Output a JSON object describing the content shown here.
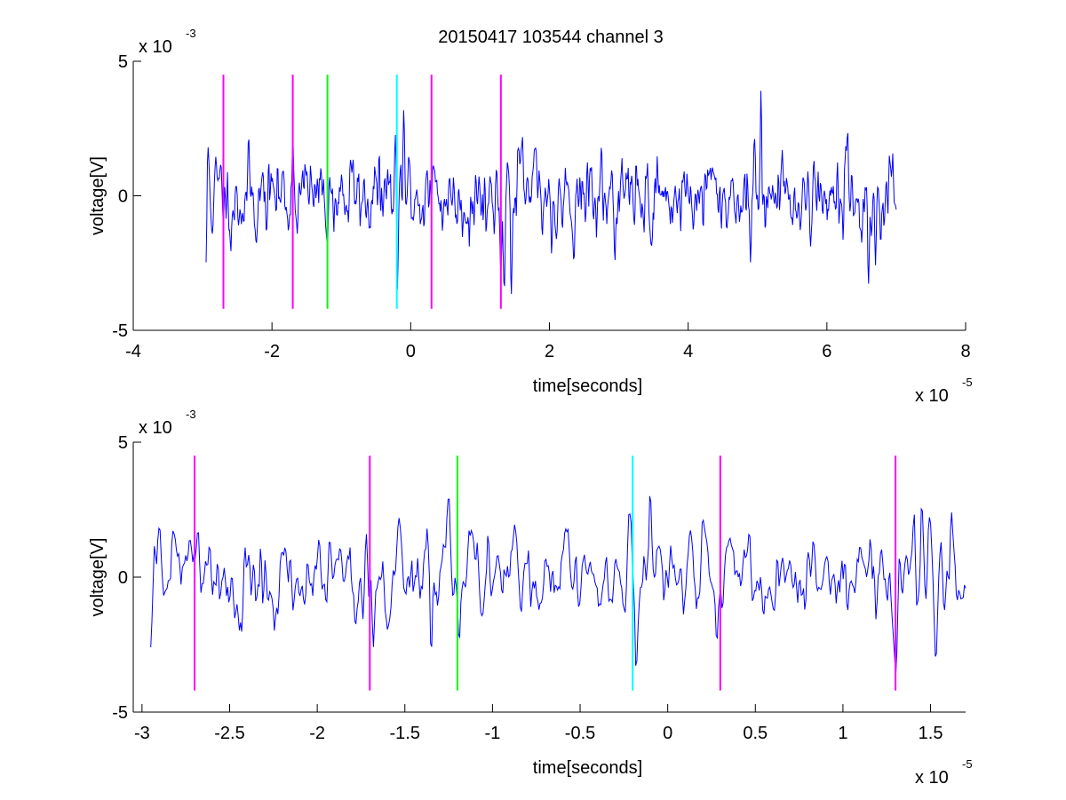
{
  "title": "20150417 103544 channel 3",
  "chart_data": [
    {
      "type": "line",
      "xlabel": "time[seconds]",
      "ylabel": "voltage[V]",
      "x_exponent_label": "x 10",
      "x_exponent": "-5",
      "y_exponent_label": "x 10",
      "y_exponent": "-3",
      "xlim": [
        -4,
        8
      ],
      "ylim": [
        -5,
        5
      ],
      "xticks": [
        -4,
        -2,
        0,
        2,
        4,
        6,
        8
      ],
      "xtick_labels": [
        "-4",
        "-2",
        "0",
        "2",
        "4",
        "6",
        "8"
      ],
      "yticks": [
        -5,
        0,
        5
      ],
      "ytick_labels": [
        "-5",
        "0",
        "5"
      ],
      "grid": false,
      "series": [
        {
          "color": "#0000ff",
          "x_range": [
            -2.95,
            7.0
          ],
          "n_points": 1000,
          "seed": 11,
          "peaks": [
            [
              -2.95,
              -2.6
            ],
            [
              -2.92,
              1.8
            ],
            [
              -1.7,
              2.1
            ],
            [
              -0.22,
              2.4
            ],
            [
              -0.19,
              -3.5
            ],
            [
              -0.1,
              3.2
            ],
            [
              1.3,
              -2.8
            ],
            [
              1.35,
              -3.4
            ],
            [
              1.45,
              -3.7
            ],
            [
              5.05,
              4.0
            ],
            [
              4.9,
              -2.5
            ],
            [
              6.6,
              -3.3
            ],
            [
              6.7,
              -2.6
            ]
          ]
        }
      ],
      "markers": [
        {
          "x": -2.7,
          "color": "#ff00ff",
          "y_range": [
            -4.2,
            4.5
          ]
        },
        {
          "x": -1.7,
          "color": "#ff00ff",
          "y_range": [
            -4.2,
            4.5
          ]
        },
        {
          "x": -1.2,
          "color": "#00ff00",
          "y_range": [
            -4.2,
            4.5
          ]
        },
        {
          "x": -0.2,
          "color": "#00ffff",
          "y_range": [
            -4.2,
            4.5
          ]
        },
        {
          "x": 0.3,
          "color": "#ff00ff",
          "y_range": [
            -4.2,
            4.5
          ]
        },
        {
          "x": 1.3,
          "color": "#ff00ff",
          "y_range": [
            -4.2,
            4.5
          ]
        }
      ]
    },
    {
      "type": "line",
      "xlabel": "time[seconds]",
      "ylabel": "voltage[V]",
      "x_exponent_label": "x 10",
      "x_exponent": "-5",
      "y_exponent_label": "x 10",
      "y_exponent": "-3",
      "xlim": [
        -3.05,
        1.7
      ],
      "ylim": [
        -5,
        5
      ],
      "xticks": [
        -3,
        -2.5,
        -2,
        -1.5,
        -1,
        -0.5,
        0,
        0.5,
        1,
        1.5
      ],
      "xtick_labels": [
        "-3",
        "-2.5",
        "-2",
        "-1.5",
        "-1",
        "-0.5",
        "0",
        "0.5",
        "1",
        "1.5"
      ],
      "yticks": [
        -5,
        0,
        5
      ],
      "ytick_labels": [
        "-5",
        "0",
        "5"
      ],
      "grid": false,
      "series": [
        {
          "color": "#0000ff",
          "x_range": [
            -2.95,
            1.7
          ],
          "n_points": 700,
          "seed": 11,
          "peaks": [
            [
              -2.95,
              -2.6
            ],
            [
              -2.9,
              1.8
            ],
            [
              -2.68,
              1.7
            ],
            [
              -1.72,
              1.6
            ],
            [
              -1.68,
              -2.6
            ],
            [
              -1.35,
              -3.0
            ],
            [
              -1.25,
              3.1
            ],
            [
              -1.19,
              -2.4
            ],
            [
              -0.22,
              2.4
            ],
            [
              -0.18,
              -3.5
            ],
            [
              -0.1,
              3.3
            ],
            [
              0.28,
              -2.4
            ],
            [
              0.2,
              2.3
            ],
            [
              1.3,
              -3.7
            ],
            [
              1.45,
              2.8
            ],
            [
              1.53,
              -3.1
            ],
            [
              1.62,
              2.4
            ]
          ]
        }
      ],
      "markers": [
        {
          "x": -2.7,
          "color": "#ff00ff",
          "y_range": [
            -4.2,
            4.5
          ]
        },
        {
          "x": -1.7,
          "color": "#ff00ff",
          "y_range": [
            -4.2,
            4.5
          ]
        },
        {
          "x": -1.2,
          "color": "#00ff00",
          "y_range": [
            -4.2,
            4.5
          ]
        },
        {
          "x": -0.2,
          "color": "#00ffff",
          "y_range": [
            -4.2,
            4.5
          ]
        },
        {
          "x": 0.3,
          "color": "#ff00ff",
          "y_range": [
            -4.2,
            4.5
          ]
        },
        {
          "x": 1.3,
          "color": "#ff00ff",
          "y_range": [
            -4.2,
            4.5
          ]
        }
      ]
    }
  ]
}
